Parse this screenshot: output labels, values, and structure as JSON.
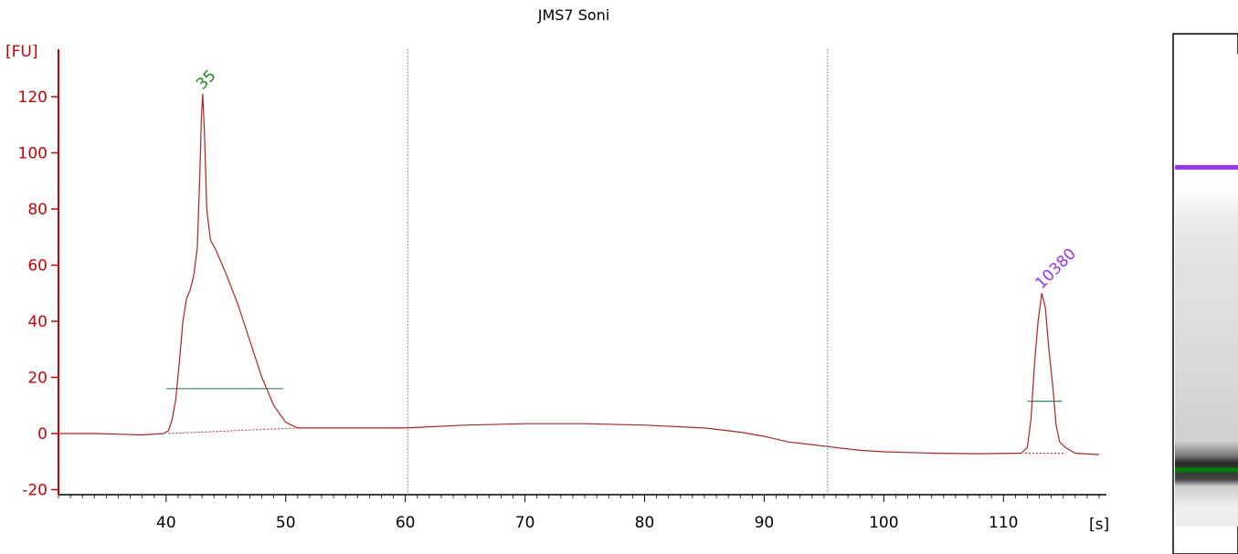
{
  "chart_data": {
    "type": "line",
    "title": "JMS7 Soni",
    "ylabel": "[FU]",
    "xlabel": "[s]",
    "xlim": [
      31,
      118
    ],
    "ylim": [
      -20,
      130
    ],
    "x_ticks": [
      "40",
      "50",
      "60",
      "70",
      "80",
      "90",
      "100",
      "110"
    ],
    "y_ticks": [
      "-20",
      "0",
      "20",
      "40",
      "60",
      "80",
      "100",
      "120"
    ],
    "grid": false,
    "markers_x": [
      60.2,
      95.3
    ],
    "series": [
      {
        "color": "#b22222",
        "points": [
          [
            31,
            0
          ],
          [
            34,
            0
          ],
          [
            38,
            -0.5
          ],
          [
            39.8,
            0
          ],
          [
            40.2,
            1
          ],
          [
            40.5,
            5
          ],
          [
            40.8,
            12
          ],
          [
            41.1,
            25
          ],
          [
            41.4,
            40
          ],
          [
            41.7,
            48
          ],
          [
            42,
            51
          ],
          [
            42.3,
            56
          ],
          [
            42.6,
            66
          ],
          [
            42.8,
            90
          ],
          [
            42.95,
            112
          ],
          [
            43.05,
            121
          ],
          [
            43.2,
            108
          ],
          [
            43.4,
            80
          ],
          [
            43.7,
            69
          ],
          [
            44.2,
            65
          ],
          [
            45,
            57
          ],
          [
            46,
            46
          ],
          [
            47,
            33
          ],
          [
            48,
            20
          ],
          [
            49,
            10
          ],
          [
            50,
            4
          ],
          [
            51,
            2
          ],
          [
            55,
            2
          ],
          [
            60,
            2
          ],
          [
            65,
            3
          ],
          [
            70,
            3.5
          ],
          [
            75,
            3.5
          ],
          [
            80,
            3
          ],
          [
            85,
            2
          ],
          [
            88,
            0.5
          ],
          [
            90,
            -1
          ],
          [
            92,
            -3
          ],
          [
            95,
            -4.5
          ],
          [
            98,
            -6
          ],
          [
            100,
            -6.5
          ],
          [
            104,
            -7
          ],
          [
            108,
            -7.2
          ],
          [
            111.5,
            -7
          ],
          [
            112,
            -5
          ],
          [
            112.3,
            5
          ],
          [
            112.6,
            25
          ],
          [
            112.9,
            40
          ],
          [
            113.2,
            50
          ],
          [
            113.5,
            45
          ],
          [
            113.8,
            30
          ],
          [
            114.1,
            18
          ],
          [
            114.4,
            3
          ],
          [
            114.7,
            -3
          ],
          [
            115.2,
            -5
          ],
          [
            116,
            -7
          ],
          [
            118,
            -7.5
          ]
        ]
      }
    ],
    "peaks": [
      {
        "label": "35",
        "x": 43.05,
        "y": 121,
        "color": "#1a8a1a"
      },
      {
        "label": "10380",
        "x": 113.2,
        "y": 50,
        "color": "#9b30ff"
      }
    ],
    "baselines": [
      {
        "x1": 40.0,
        "x2": 49.8,
        "y": 16,
        "color": "#2e8b57"
      },
      {
        "x1": 112.0,
        "x2": 114.9,
        "y": 11.5,
        "color": "#2e8b57"
      }
    ],
    "gel": {
      "bands": [
        {
          "position": 0.24,
          "color": "#9b30ff",
          "label": ""
        },
        {
          "position": 0.88,
          "color": "#008000",
          "label": ""
        }
      ]
    }
  }
}
